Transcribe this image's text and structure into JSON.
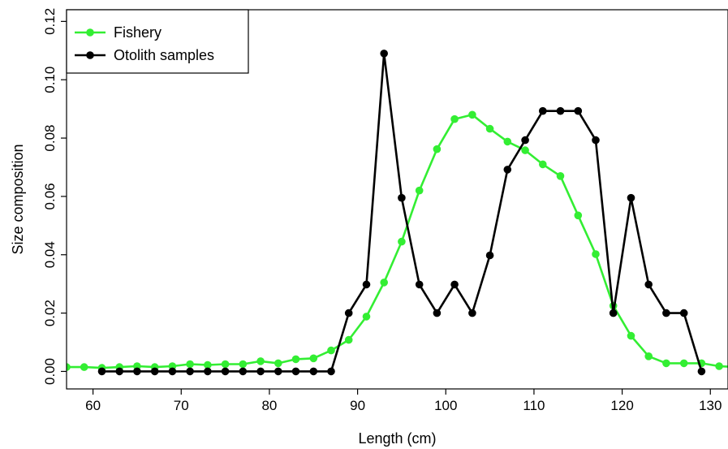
{
  "chart_data": {
    "type": "line",
    "title": "",
    "xlabel": "Length (cm)",
    "ylabel": "Size composition",
    "xlim": [
      57,
      132
    ],
    "ylim": [
      -0.006,
      0.124
    ],
    "xticks": [
      60,
      70,
      80,
      90,
      100,
      110,
      120,
      130
    ],
    "yticks": [
      0.0,
      0.02,
      0.04,
      0.06,
      0.08,
      0.1,
      0.12
    ],
    "ytick_labels": [
      "0.00",
      "0.02",
      "0.04",
      "0.06",
      "0.08",
      "0.10",
      "0.12"
    ],
    "legend_position": "top-left",
    "grid": false,
    "series": [
      {
        "name": "Fishery",
        "color": "#33ee33",
        "x": [
          57,
          59,
          61,
          63,
          65,
          67,
          69,
          71,
          73,
          75,
          77,
          79,
          81,
          83,
          85,
          87,
          89,
          91,
          93,
          95,
          97,
          99,
          101,
          103,
          105,
          107,
          109,
          111,
          113,
          115,
          117,
          119,
          121,
          123,
          125,
          127,
          129,
          131,
          133
        ],
        "y": [
          0.0015,
          0.0015,
          0.0012,
          0.0015,
          0.0018,
          0.0015,
          0.0018,
          0.0025,
          0.0022,
          0.0025,
          0.0025,
          0.0035,
          0.0028,
          0.0042,
          0.0045,
          0.0072,
          0.0108,
          0.0188,
          0.0305,
          0.0445,
          0.062,
          0.0762,
          0.0865,
          0.088,
          0.0832,
          0.0788,
          0.0758,
          0.071,
          0.067,
          0.0535,
          0.0402,
          0.0225,
          0.0122,
          0.0052,
          0.0028,
          0.0028,
          0.0028,
          0.0018,
          0.0015
        ]
      },
      {
        "name": "Otolith samples",
        "color": "#000000",
        "x": [
          61,
          63,
          65,
          67,
          69,
          71,
          73,
          75,
          77,
          79,
          81,
          83,
          85,
          87,
          89,
          91,
          93,
          95,
          97,
          99,
          101,
          103,
          105,
          107,
          109,
          111,
          113,
          115,
          117,
          119,
          121,
          123,
          125,
          127,
          129
        ],
        "y": [
          0,
          0,
          0,
          0,
          0,
          0,
          0,
          0,
          0,
          0,
          0,
          0,
          0,
          0,
          0.02,
          0.0298,
          0.109,
          0.0595,
          0.0298,
          0.02,
          0.0298,
          0.02,
          0.0398,
          0.0692,
          0.0793,
          0.0893,
          0.0893,
          0.0893,
          0.0793,
          0.02,
          0.0595,
          0.0298,
          0.02,
          0.02,
          0
        ]
      }
    ]
  }
}
